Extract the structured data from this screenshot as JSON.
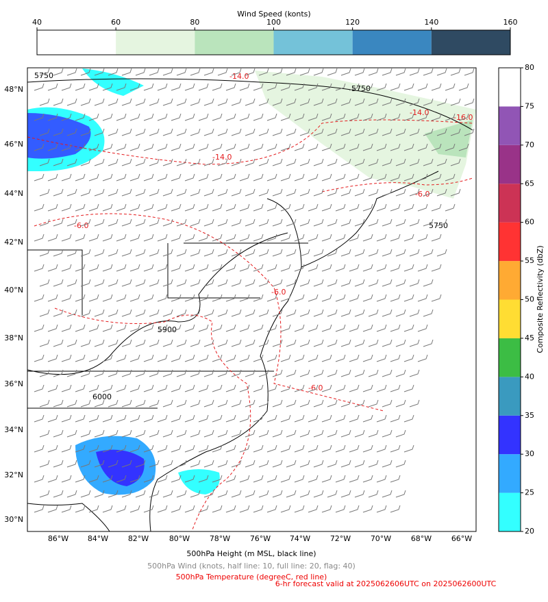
{
  "wind_colorbar": {
    "title": "Wind Speed (konts)",
    "ticks": [
      40,
      60,
      80,
      100,
      120,
      140,
      160
    ],
    "colors": [
      "#ffffff",
      "#e5f5e0",
      "#bae4bc",
      "#74c2d9",
      "#3a87c0",
      "#2f4a62"
    ]
  },
  "reflectivity_colorbar": {
    "label": "Composite Reflectivity (dbZ)",
    "ticks": [
      20,
      25,
      30,
      35,
      40,
      45,
      50,
      55,
      60,
      65,
      70,
      75,
      80
    ],
    "colors": [
      "#33ffff",
      "#33aaff",
      "#3333ff",
      "#3a9abf",
      "#3cbd44",
      "#ffdd33",
      "#ffaa33",
      "#ff3333",
      "#cc3355",
      "#993388",
      "#9155b5",
      "#ffffff"
    ]
  },
  "map": {
    "lon_labels": [
      "86°W",
      "84°W",
      "82°W",
      "80°W",
      "78°W",
      "76°W",
      "74°W",
      "72°W",
      "70°W",
      "68°W",
      "66°W"
    ],
    "lat_labels": [
      "48°N",
      "46°N",
      "44°N",
      "42°N",
      "40°N",
      "38°N",
      "36°N",
      "34°N",
      "32°N",
      "30°N"
    ],
    "contour_labels": [
      "5750",
      "-14.0",
      "-16.0",
      "-6.0",
      "5900",
      "6000"
    ]
  },
  "captions": {
    "height": "500hPa Height (m MSL, black line)",
    "wind": "500hPa Wind (knots, half line: 10, full line: 20, flag: 40)",
    "temperature": "500hPa Temperature (degreeC, red line)",
    "valid": "6-hr forecast valid at 2025062606UTC on 2025062600UTC"
  }
}
